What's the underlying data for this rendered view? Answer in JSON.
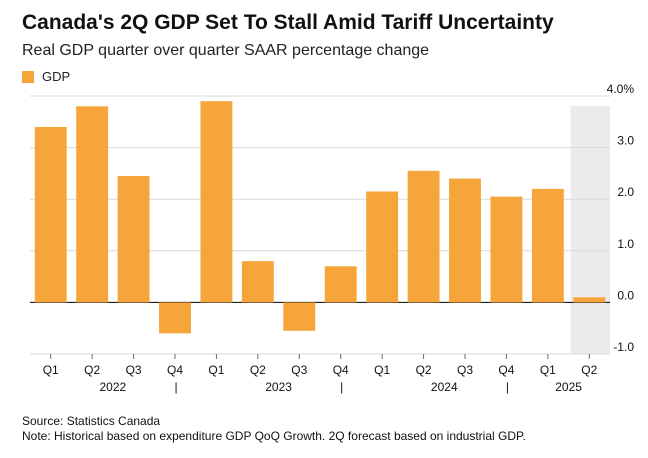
{
  "header": {
    "title": "Canada's 2Q GDP Set To Stall Amid Tariff Uncertainty",
    "subtitle": "Real GDP quarter over quarter SAAR percentage change"
  },
  "footer": {
    "source": "Source: Statistics Canada",
    "note": "Note: Historical based on expenditure GDP QoQ Growth. 2Q forecast based on industrial GDP."
  },
  "colors": {
    "bar": "#F6A53A",
    "forecast_shade": "#ECEBEC",
    "gridline": "#D9D9D9",
    "zero_line": "#000000",
    "text": "#111111"
  },
  "chart_data": {
    "type": "bar",
    "title": "Canada's 2Q GDP Set To Stall Amid Tariff Uncertainty",
    "subtitle": "Real GDP quarter over quarter SAAR percentage change",
    "categories": [
      "Q1",
      "Q2",
      "Q3",
      "Q4",
      "Q1",
      "Q2",
      "Q3",
      "Q4",
      "Q1",
      "Q2",
      "Q3",
      "Q4",
      "Q1",
      "Q2"
    ],
    "year_labels": [
      {
        "label": "2022",
        "span": [
          0,
          3
        ]
      },
      {
        "label": "2023",
        "span": [
          4,
          7
        ]
      },
      {
        "label": "2024",
        "span": [
          8,
          11
        ]
      },
      {
        "label": "2025",
        "span": [
          12,
          13
        ]
      }
    ],
    "year_separator": "|",
    "series": [
      {
        "name": "GDP",
        "values": [
          3.4,
          3.8,
          2.45,
          -0.6,
          3.9,
          0.8,
          -0.55,
          0.7,
          2.15,
          2.55,
          2.4,
          2.05,
          2.2,
          0.1
        ]
      }
    ],
    "forecast_categories": [
      13
    ],
    "yticks": [
      -1.0,
      0.0,
      1.0,
      2.0,
      3.0,
      4.0
    ],
    "ytick_labels": [
      "-1.0",
      "0.0",
      "1.0",
      "2.0",
      "3.0",
      "4.0%"
    ],
    "ylim": [
      -1.0,
      4.0
    ],
    "y_axis_position": "right",
    "grid": true,
    "legend": "top-left",
    "xlabel": "",
    "ylabel": ""
  }
}
